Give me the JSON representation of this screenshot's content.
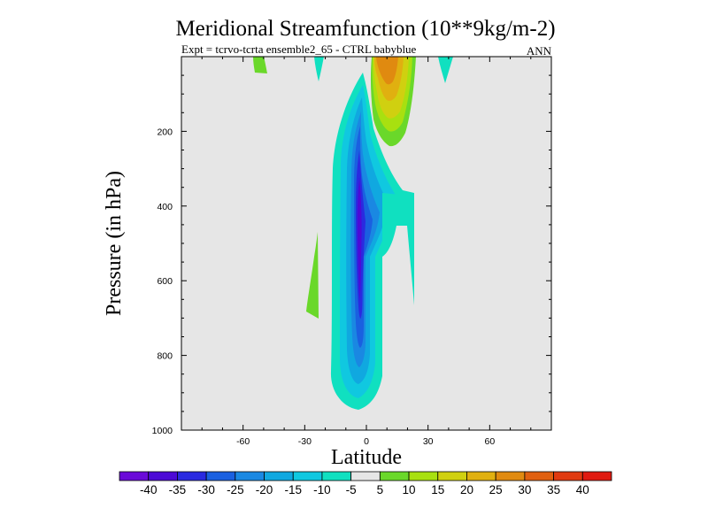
{
  "chart_data": {
    "type": "contour",
    "title": "Meridional Streamfunction (10**9kg/m-2)",
    "left_subtitle": "Expt = tcrvo-tcrta  ensemble2_65 - CTRL babyblue",
    "right_subtitle": "ANN",
    "xlabel": "Latitude",
    "ylabel": "Pressure (in hPa)",
    "xlim": [
      -90,
      90
    ],
    "ylim": [
      1000,
      0
    ],
    "x_ticks": [
      -60,
      -30,
      0,
      30,
      60
    ],
    "x_tick_labels": [
      "-60",
      "-30",
      "0",
      "30",
      "60"
    ],
    "y_ticks": [
      200,
      400,
      600,
      800,
      1000
    ],
    "y_tick_labels": [
      "200",
      "400",
      "600",
      "800",
      "1000"
    ],
    "background_color": "#e6e6e6",
    "colorbar": {
      "levels": [
        "-40",
        "-35",
        "-30",
        "-25",
        "-20",
        "-15",
        "-10",
        "-5",
        "5",
        "10",
        "15",
        "20",
        "25",
        "30",
        "35",
        "40"
      ],
      "colors": [
        "#6a0ad8",
        "#4c0ad6",
        "#2a2ae0",
        "#1a60e0",
        "#1a88e2",
        "#10a8e0",
        "#10c8e0",
        "#10e0c0",
        "#e6e6e6",
        "#6ad82a",
        "#a8e010",
        "#d0d010",
        "#e0b010",
        "#e08a10",
        "#e06010",
        "#e03a10",
        "#e01a10"
      ]
    },
    "features": [
      {
        "name": "main-negative-cell",
        "sign": "negative",
        "min_value": -35,
        "center_lat": -2,
        "center_pressure": 420,
        "lat_range": [
          -10,
          10
        ],
        "pressure_range": [
          20,
          950
        ]
      },
      {
        "name": "upper-positive-cell",
        "sign": "positive",
        "max_value": 25,
        "center_lat": 8,
        "center_pressure": 50,
        "lat_range": [
          2,
          12
        ],
        "pressure_range": [
          0,
          210
        ]
      },
      {
        "name": "south-patch",
        "sign": "positive",
        "value": 5,
        "lat_range": [
          -28,
          -22
        ],
        "pressure_range": [
          470,
          700
        ]
      },
      {
        "name": "upper-left-patch",
        "sign": "positive",
        "value": 5,
        "lat_range": [
          -52,
          -47
        ],
        "pressure_range": [
          0,
          50
        ]
      },
      {
        "name": "upper-mid-patch",
        "sign": "negative",
        "value": -5,
        "lat_range": [
          -23,
          -21
        ],
        "pressure_range": [
          0,
          70
        ]
      },
      {
        "name": "upper-right-patch",
        "sign": "negative",
        "value": -5,
        "lat_range": [
          36,
          40
        ],
        "pressure_range": [
          0,
          60
        ]
      }
    ]
  }
}
